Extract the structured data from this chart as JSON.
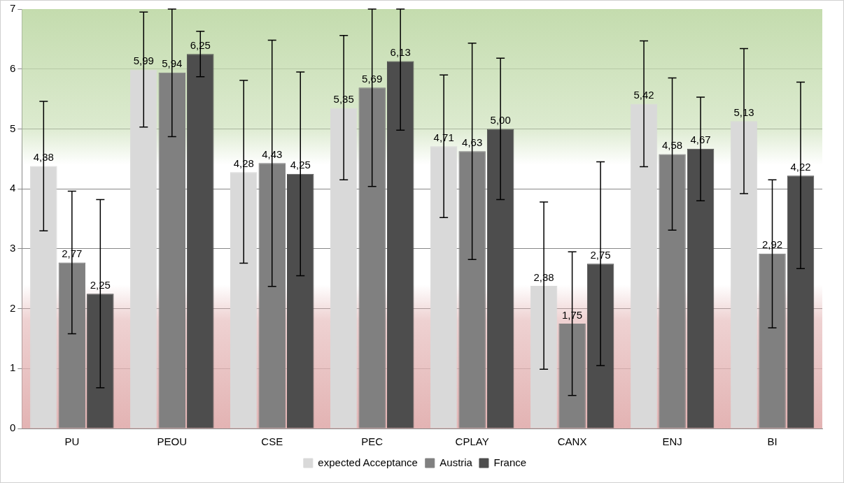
{
  "chart_data": {
    "type": "bar",
    "categories": [
      "PU",
      "PEOU",
      "CSE",
      "PEC",
      "CPLAY",
      "CANX",
      "ENJ",
      "BI"
    ],
    "series": [
      {
        "name": "expected Acceptance",
        "color": "#d9d9d9",
        "values": [
          4.38,
          5.99,
          4.28,
          5.35,
          4.71,
          2.38,
          5.42,
          5.13
        ],
        "value_labels": [
          "4,38",
          "5,99",
          "4,28",
          "5,35",
          "4,71",
          "2,38",
          "5,42",
          "5,13"
        ],
        "errors": [
          [
            3.3,
            5.46
          ],
          [
            5.03,
            6.95
          ],
          [
            2.76,
            5.81
          ],
          [
            4.15,
            6.56
          ],
          [
            3.52,
            5.9
          ],
          [
            0.99,
            3.78
          ],
          [
            4.37,
            6.47
          ],
          [
            3.92,
            6.34
          ]
        ]
      },
      {
        "name": "Austria",
        "color": "#808080",
        "values": [
          2.77,
          5.94,
          4.43,
          5.69,
          4.63,
          1.75,
          4.58,
          2.92
        ],
        "value_labels": [
          "2,77",
          "5,94",
          "4,43",
          "5,69",
          "4,63",
          "1,75",
          "4,58",
          "2,92"
        ],
        "errors": [
          [
            1.58,
            3.96
          ],
          [
            4.87,
            7
          ],
          [
            2.37,
            6.48
          ],
          [
            4.04,
            7
          ],
          [
            2.82,
            6.43
          ],
          [
            0.55,
            2.95
          ],
          [
            3.31,
            5.85
          ],
          [
            1.68,
            4.15
          ]
        ]
      },
      {
        "name": "France",
        "color": "#4d4d4d",
        "values": [
          2.25,
          6.25,
          4.25,
          6.13,
          5.0,
          2.75,
          4.67,
          4.22
        ],
        "value_labels": [
          "2,25",
          "6,25",
          "4,25",
          "6,13",
          "5,00",
          "2,75",
          "4,67",
          "4,22"
        ],
        "errors": [
          [
            0.68,
            3.82
          ],
          [
            5.87,
            6.63
          ],
          [
            2.55,
            5.95
          ],
          [
            4.98,
            7
          ],
          [
            3.82,
            6.18
          ],
          [
            1.05,
            4.45
          ],
          [
            3.8,
            5.53
          ],
          [
            2.67,
            5.78
          ]
        ]
      }
    ],
    "ylim": [
      0,
      7
    ],
    "yticks": [
      0,
      1,
      2,
      3,
      4,
      5,
      6,
      7
    ],
    "grid": "y",
    "legend": "bottom",
    "bands": [
      {
        "axis": "y",
        "from": 4.4,
        "to": 7,
        "color": "#c4dcae"
      },
      {
        "axis": "y",
        "from": 0,
        "to": 2.4,
        "color": "#e3b3b3"
      }
    ]
  }
}
